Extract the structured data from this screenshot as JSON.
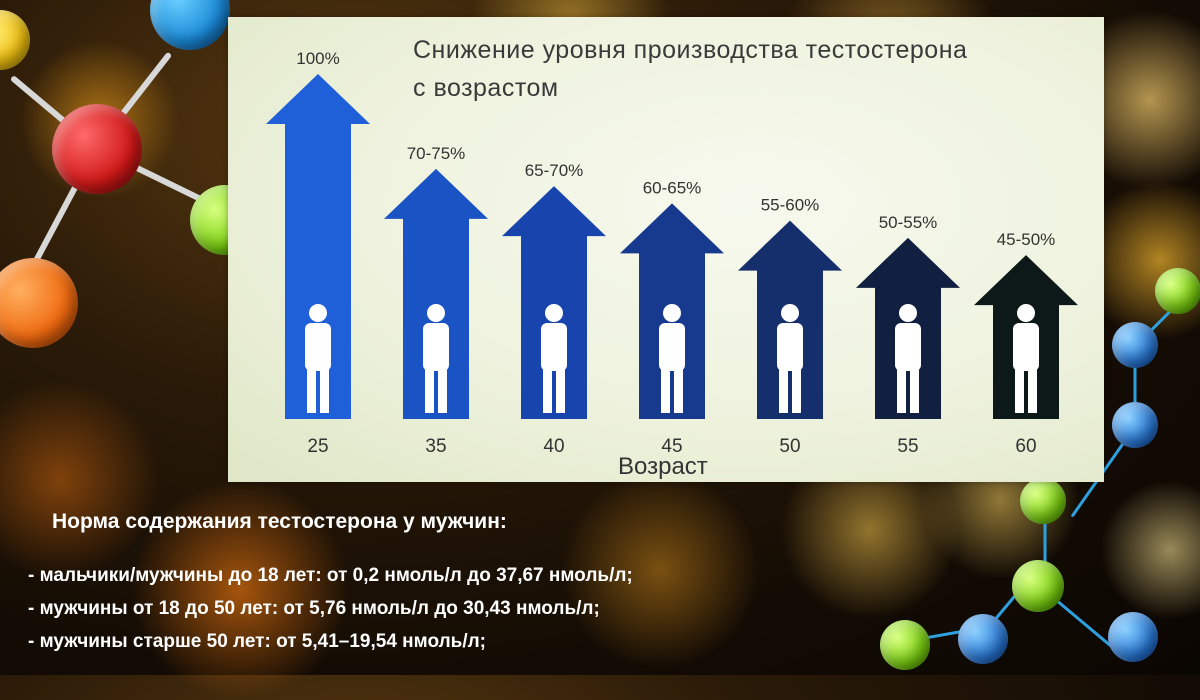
{
  "chart_data": {
    "type": "bar",
    "title": "Снижение уровня производства тестостерона с возрастом",
    "title_line1": "Снижение уровня производства тестостерона",
    "title_line2": "с возрастом",
    "xlabel": "Возраст",
    "ylabel": "",
    "categories": [
      "25",
      "35",
      "40",
      "45",
      "50",
      "55",
      "60"
    ],
    "values": [
      100,
      72.5,
      67.5,
      62.5,
      57.5,
      52.5,
      47.5
    ],
    "value_labels": [
      "100%",
      "70-75%",
      "65-70%",
      "60-65%",
      "55-60%",
      "50-55%",
      "45-50%"
    ],
    "ylim": [
      0,
      100
    ],
    "bar_colors": [
      "#1f5fd8",
      "#1a53c4",
      "#1745ad",
      "#173a8f",
      "#152e6c",
      "#112040",
      "#0d1818"
    ],
    "grid": false,
    "legend": "none"
  },
  "norms": {
    "heading": "Норма содержания тестостерона у мужчин:",
    "lines": [
      "- мальчики/мужчины до 18 лет: от 0,2 нмоль/л до 37,67 нмоль/л;",
      "- мужчины от 18 до 50 лет: от 5,76 нмоль/л до 30,43 нмоль/л;",
      "- мужчины старше 50 лет: от 5,41–19,54 нмоль/л;"
    ]
  }
}
